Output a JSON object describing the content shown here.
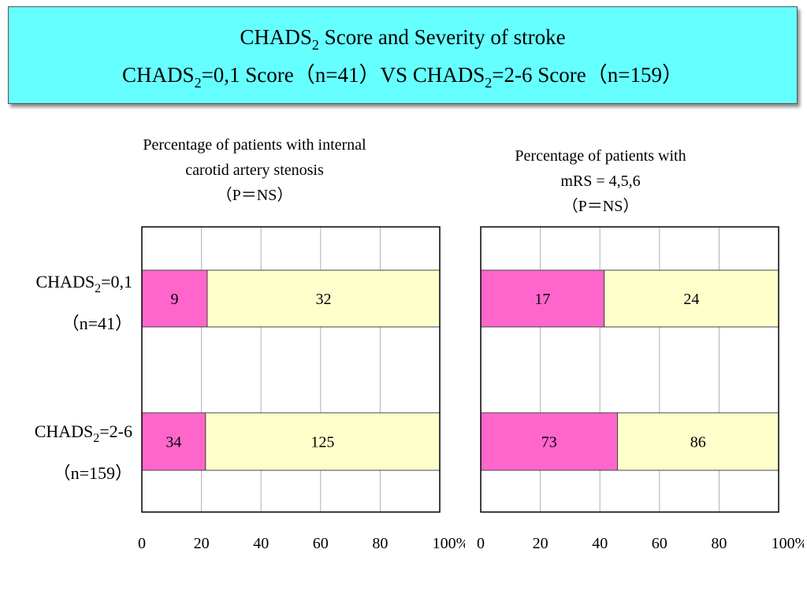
{
  "header": {
    "line1": {
      "a": "CHADS",
      "b": "2",
      "c": " Score and Severity of stroke"
    },
    "line2": {
      "a": "CHADS",
      "b": "2",
      "c": "=0,1 Score（n=41）VS CHADS",
      "d": "2",
      "e": "=2-6 Score（n=159）"
    }
  },
  "rows": [
    {
      "a": "CHADS",
      "b": "2",
      "c": "=0,1",
      "n": "（n=41）"
    },
    {
      "a": "CHADS",
      "b": "2",
      "c": "=2-6",
      "n": "（n=159）"
    }
  ],
  "colors": {
    "segment_a": "#ff66cc",
    "segment_b": "#ffffcc",
    "title_bg": "#66ffff"
  },
  "chart_data": [
    {
      "type": "bar",
      "orientation": "horizontal",
      "stacked": "percent",
      "title_lines": [
        "Percentage of patients with internal",
        "carotid artery stenosis",
        "（P＝NS）"
      ],
      "categories": [
        "CHADS2=0,1 (n=41)",
        "CHADS2=2-6 (n=159)"
      ],
      "series": [
        {
          "values": [
            9,
            34
          ]
        },
        {
          "values": [
            32,
            125
          ]
        }
      ],
      "xlim": [
        0,
        100
      ],
      "xticks": [
        "0",
        "20",
        "40",
        "60",
        "80",
        "100%"
      ],
      "grid": true
    },
    {
      "type": "bar",
      "orientation": "horizontal",
      "stacked": "percent",
      "title_lines": [
        "Percentage of patients with",
        "mRS = 4,5,6",
        "（P＝NS）"
      ],
      "categories": [
        "CHADS2=0,1 (n=41)",
        "CHADS2=2-6 (n=159)"
      ],
      "series": [
        {
          "values": [
            17,
            73
          ]
        },
        {
          "values": [
            24,
            86
          ]
        }
      ],
      "xlim": [
        0,
        100
      ],
      "xticks": [
        "0",
        "20",
        "40",
        "60",
        "80",
        "100%"
      ],
      "grid": true
    }
  ]
}
